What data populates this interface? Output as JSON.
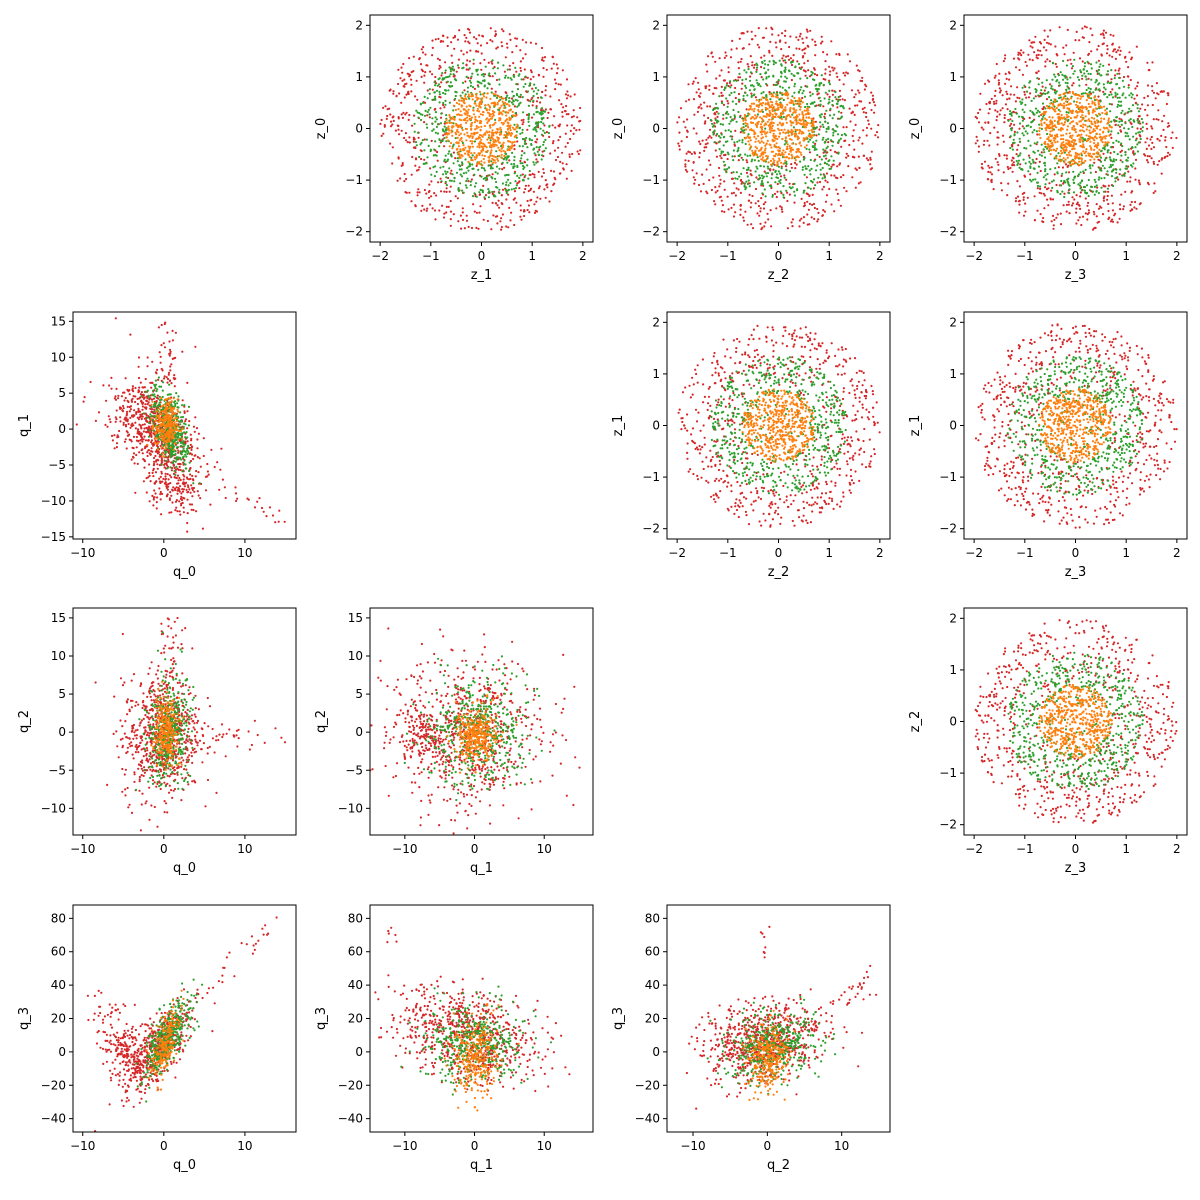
{
  "figure": {
    "colors": {
      "red": "#d62728",
      "green": "#2ca02c",
      "orange": "#ff7f0e"
    }
  },
  "chart_data": [
    {
      "type": "scatter",
      "row": 0,
      "col": 1,
      "xlabel": "z_1",
      "ylabel": "z_0",
      "xlim": [
        -2.2,
        2.2
      ],
      "ylim": [
        -2.2,
        2.2
      ],
      "xticks": [
        -2,
        -1,
        0,
        1,
        2
      ],
      "yticks": [
        -2,
        -1,
        0,
        1,
        2
      ],
      "shape": "rings"
    },
    {
      "type": "scatter",
      "row": 0,
      "col": 2,
      "xlabel": "z_2",
      "ylabel": "z_0",
      "xlim": [
        -2.2,
        2.2
      ],
      "ylim": [
        -2.2,
        2.2
      ],
      "xticks": [
        -2,
        -1,
        0,
        1,
        2
      ],
      "yticks": [
        -2,
        -1,
        0,
        1,
        2
      ],
      "shape": "rings"
    },
    {
      "type": "scatter",
      "row": 0,
      "col": 3,
      "xlabel": "z_3",
      "ylabel": "z_0",
      "xlim": [
        -2.2,
        2.2
      ],
      "ylim": [
        -2.2,
        2.2
      ],
      "xticks": [
        -2,
        -1,
        0,
        1,
        2
      ],
      "yticks": [
        -2,
        -1,
        0,
        1,
        2
      ],
      "shape": "rings"
    },
    {
      "type": "scatter",
      "row": 1,
      "col": 2,
      "xlabel": "z_2",
      "ylabel": "z_1",
      "xlim": [
        -2.2,
        2.2
      ],
      "ylim": [
        -2.2,
        2.2
      ],
      "xticks": [
        -2,
        -1,
        0,
        1,
        2
      ],
      "yticks": [
        -2,
        -1,
        0,
        1,
        2
      ],
      "shape": "rings"
    },
    {
      "type": "scatter",
      "row": 1,
      "col": 3,
      "xlabel": "z_3",
      "ylabel": "z_1",
      "xlim": [
        -2.2,
        2.2
      ],
      "ylim": [
        -2.2,
        2.2
      ],
      "xticks": [
        -2,
        -1,
        0,
        1,
        2
      ],
      "yticks": [
        -2,
        -1,
        0,
        1,
        2
      ],
      "shape": "rings"
    },
    {
      "type": "scatter",
      "row": 2,
      "col": 3,
      "xlabel": "z_3",
      "ylabel": "z_2",
      "xlim": [
        -2.2,
        2.2
      ],
      "ylim": [
        -2.2,
        2.2
      ],
      "xticks": [
        -2,
        -1,
        0,
        1,
        2
      ],
      "yticks": [
        -2,
        -1,
        0,
        1,
        2
      ],
      "shape": "rings"
    },
    {
      "type": "scatter",
      "row": 1,
      "col": 0,
      "xlabel": "q_0",
      "ylabel": "q_1",
      "xlim": [
        -11.2,
        16.3
      ],
      "ylim": [
        -15.3,
        16.3
      ],
      "xticks": [
        -10,
        0,
        10
      ],
      "yticks": [
        -15,
        -10,
        -5,
        0,
        5,
        10,
        15
      ],
      "shape": "q0q1"
    },
    {
      "type": "scatter",
      "row": 2,
      "col": 0,
      "xlabel": "q_0",
      "ylabel": "q_2",
      "xlim": [
        -11.2,
        16.3
      ],
      "ylim": [
        -13.5,
        16.3
      ],
      "xticks": [
        -10,
        0,
        10
      ],
      "yticks": [
        -10,
        -5,
        0,
        5,
        10,
        15
      ],
      "shape": "q0q2"
    },
    {
      "type": "scatter",
      "row": 2,
      "col": 1,
      "xlabel": "q_1",
      "ylabel": "q_2",
      "xlim": [
        -15,
        17
      ],
      "ylim": [
        -13.5,
        16.3
      ],
      "xticks": [
        -10,
        0,
        10
      ],
      "yticks": [
        -10,
        -5,
        0,
        5,
        10,
        15
      ],
      "shape": "q1q2"
    },
    {
      "type": "scatter",
      "row": 3,
      "col": 0,
      "xlabel": "q_0",
      "ylabel": "q_3",
      "xlim": [
        -11.2,
        16.3
      ],
      "ylim": [
        -48,
        88
      ],
      "xticks": [
        -10,
        0,
        10
      ],
      "yticks": [
        -40,
        -20,
        0,
        20,
        40,
        60,
        80
      ],
      "shape": "q0q3"
    },
    {
      "type": "scatter",
      "row": 3,
      "col": 1,
      "xlabel": "q_1",
      "ylabel": "q_3",
      "xlim": [
        -15,
        17
      ],
      "ylim": [
        -48,
        88
      ],
      "xticks": [
        -10,
        0,
        10
      ],
      "yticks": [
        -40,
        -20,
        0,
        20,
        40,
        60,
        80
      ],
      "shape": "q1q3"
    },
    {
      "type": "scatter",
      "row": 3,
      "col": 2,
      "xlabel": "q_2",
      "ylabel": "q_3",
      "xlim": [
        -13.5,
        16.5
      ],
      "ylim": [
        -48,
        88
      ],
      "xticks": [
        -10,
        0,
        10
      ],
      "yticks": [
        -40,
        -20,
        0,
        20,
        40,
        60,
        80
      ],
      "shape": "q2q3"
    }
  ]
}
